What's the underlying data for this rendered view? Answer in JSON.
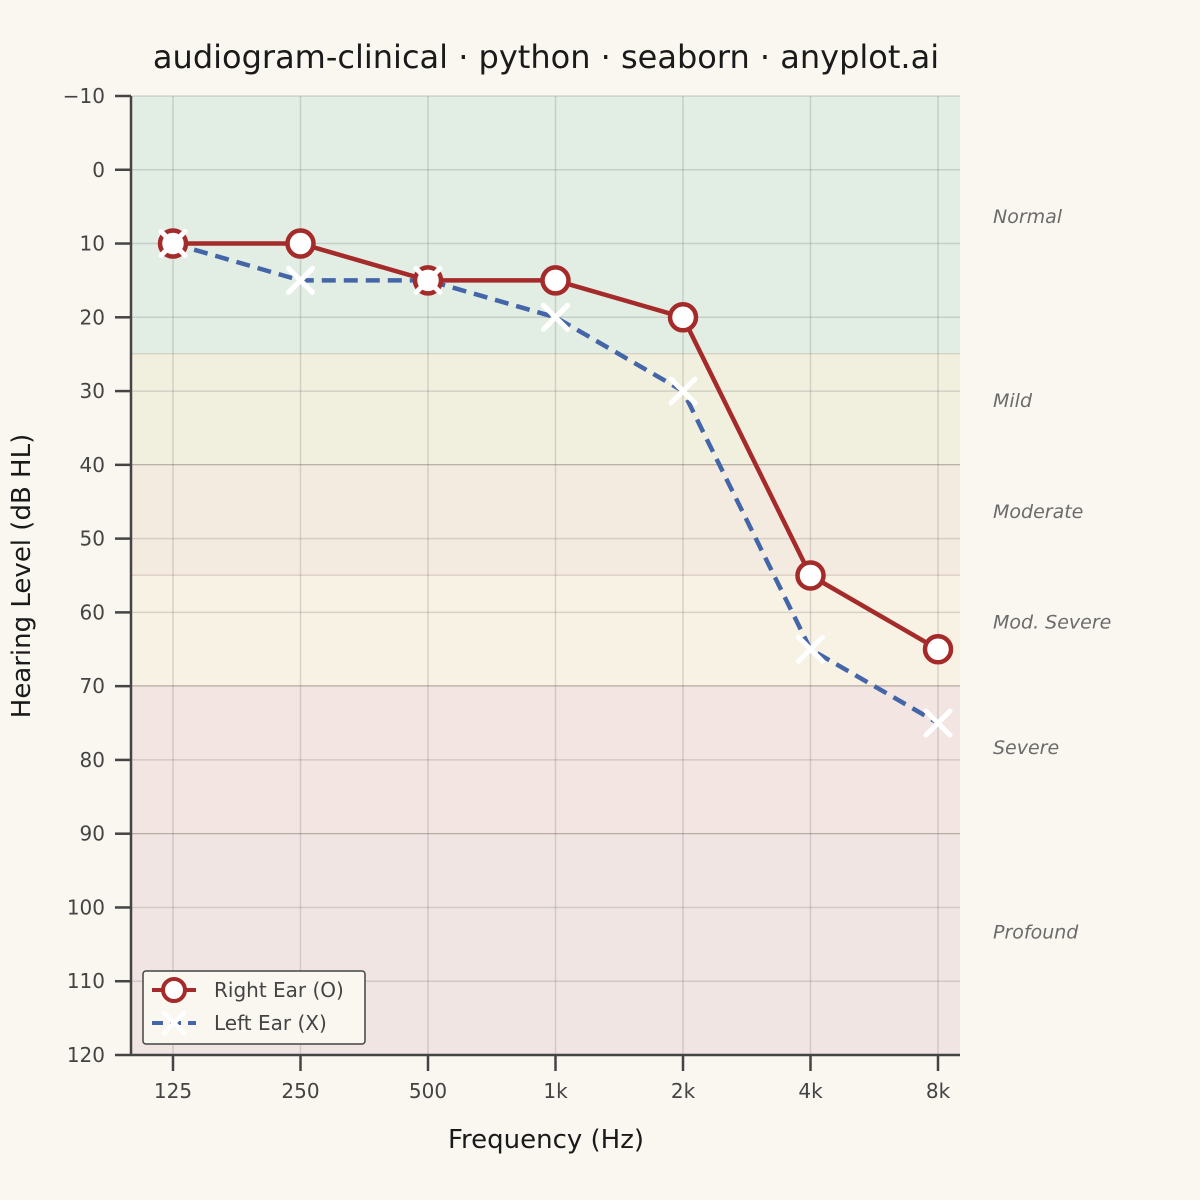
{
  "chart_data": {
    "type": "line",
    "title": "audiogram-clinical · python · seaborn · anyplot.ai",
    "xlabel": "Frequency (Hz)",
    "ylabel": "Hearing Level (dB HL)",
    "categories": [
      "125",
      "250",
      "500",
      "1k",
      "2k",
      "4k",
      "8k"
    ],
    "ylim": [
      -10,
      120
    ],
    "y_inverted": true,
    "y_ticks": [
      "−10",
      "0",
      "10",
      "20",
      "30",
      "40",
      "50",
      "60",
      "70",
      "80",
      "90",
      "100",
      "110",
      "120"
    ],
    "grid": true,
    "legend_position": "bottom-left",
    "series": [
      {
        "name": "Right Ear (O)",
        "values": [
          10,
          10,
          15,
          15,
          20,
          55,
          65
        ],
        "color": "#A52A2A",
        "marker": "circle",
        "line_style": "solid"
      },
      {
        "name": "Left Ear (X)",
        "values": [
          10,
          15,
          15,
          20,
          30,
          65,
          75
        ],
        "color": "#4466A8",
        "marker": "x",
        "line_style": "dashed"
      }
    ],
    "bands": [
      {
        "label": "Normal",
        "from": -10,
        "to": 25,
        "color": "#E2EEE4"
      },
      {
        "label": "Mild",
        "from": 25,
        "to": 40,
        "color": "#F1F0DF"
      },
      {
        "label": "Moderate",
        "from": 40,
        "to": 55,
        "color": "#F4EBE0"
      },
      {
        "label": "Mod. Severe",
        "from": 55,
        "to": 70,
        "color": "#F7F2E4"
      },
      {
        "label": "Severe",
        "from": 70,
        "to": 90,
        "color": "#F2E5E2"
      },
      {
        "label": "Profound",
        "from": 90,
        "to": 120,
        "color": "#F0E5E2"
      }
    ],
    "band_label_values": [
      8,
      33,
      48,
      63,
      80,
      105
    ]
  }
}
